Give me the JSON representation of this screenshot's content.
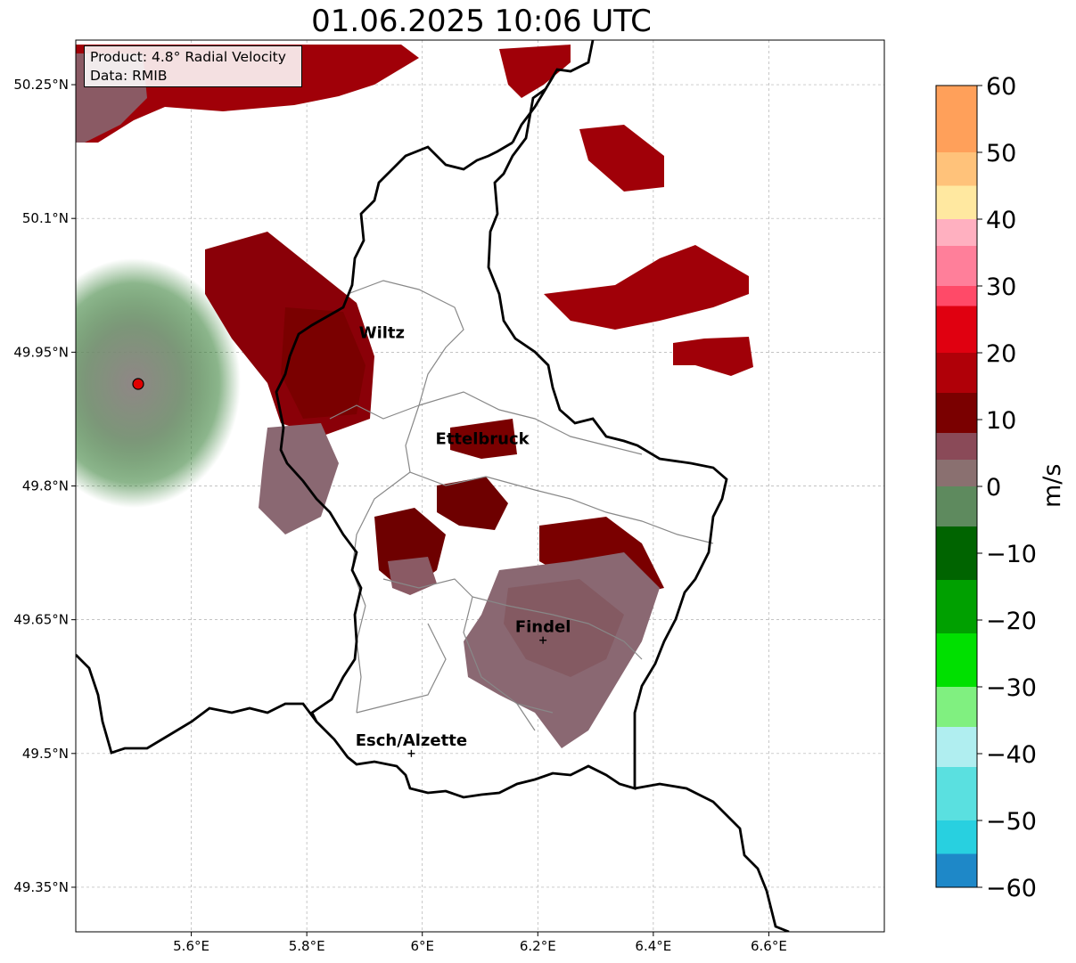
{
  "title": "01.06.2025 10:06 UTC",
  "info_box": {
    "product_line": "Product: 4.8° Radial Velocity",
    "data_line": "Data: RMIB"
  },
  "map": {
    "lon_range": [
      5.4,
      6.8
    ],
    "lat_range": [
      49.3,
      50.3
    ],
    "x_ticks": [
      {
        "value": 5.6,
        "label": "5.6°E"
      },
      {
        "value": 5.8,
        "label": "5.8°E"
      },
      {
        "value": 6.0,
        "label": "6°E"
      },
      {
        "value": 6.2,
        "label": "6.2°E"
      },
      {
        "value": 6.4,
        "label": "6.4°E"
      },
      {
        "value": 6.6,
        "label": "6.6°E"
      }
    ],
    "y_ticks": [
      {
        "value": 50.25,
        "label": "50.25°N"
      },
      {
        "value": 50.1,
        "label": "50.1°N"
      },
      {
        "value": 49.95,
        "label": "49.95°N"
      },
      {
        "value": 49.8,
        "label": "49.8°N"
      },
      {
        "value": 49.65,
        "label": "49.65°N"
      },
      {
        "value": 49.5,
        "label": "49.5°N"
      },
      {
        "value": 49.35,
        "label": "49.35°N"
      }
    ],
    "gridlines": true,
    "radar_site": {
      "lon": 5.505,
      "lat": 49.915
    },
    "cities": [
      {
        "name": "Wiltz",
        "lon": 5.93,
        "lat": 49.966,
        "marker": false
      },
      {
        "name": "Ettelbruck",
        "lon": 6.104,
        "lat": 49.847,
        "marker": false
      },
      {
        "name": "Findel",
        "lon": 6.209,
        "lat": 49.627,
        "marker": true
      },
      {
        "name": "Esch/Alzette",
        "lon": 5.981,
        "lat": 49.5,
        "marker": true
      }
    ]
  },
  "colorbar": {
    "label": "m/s",
    "vmin": -60,
    "vmax": 60,
    "ticks": [
      60,
      50,
      40,
      30,
      20,
      10,
      0,
      -10,
      -20,
      -30,
      -40,
      -50,
      -60
    ],
    "tick_labels": [
      "60",
      "50",
      "40",
      "30",
      "20",
      "10",
      "0",
      "−10",
      "−20",
      "−30",
      "−40",
      "−50",
      "−60"
    ],
    "stops": [
      {
        "from": 50,
        "to": 60,
        "color": "#ffa05a"
      },
      {
        "from": 45,
        "to": 50,
        "color": "#ffc27a"
      },
      {
        "from": 40,
        "to": 45,
        "color": "#ffe8a0"
      },
      {
        "from": 36,
        "to": 40,
        "color": "#ffb0c0"
      },
      {
        "from": 30,
        "to": 36,
        "color": "#ff7f9a"
      },
      {
        "from": 27,
        "to": 30,
        "color": "#ff4a68"
      },
      {
        "from": 20,
        "to": 27,
        "color": "#e00010"
      },
      {
        "from": 14,
        "to": 20,
        "color": "#b00008"
      },
      {
        "from": 8,
        "to": 14,
        "color": "#7a0000"
      },
      {
        "from": 4,
        "to": 8,
        "color": "#8a4a58"
      },
      {
        "from": 0,
        "to": 4,
        "color": "#8a7070"
      },
      {
        "from": -6,
        "to": 0,
        "color": "#5e8a5e"
      },
      {
        "from": -14,
        "to": -6,
        "color": "#006400"
      },
      {
        "from": -22,
        "to": -14,
        "color": "#00a000"
      },
      {
        "from": -30,
        "to": -22,
        "color": "#00e000"
      },
      {
        "from": -36,
        "to": -30,
        "color": "#80f080"
      },
      {
        "from": -42,
        "to": -36,
        "color": "#b0eef0"
      },
      {
        "from": -50,
        "to": -42,
        "color": "#5ae0e0"
      },
      {
        "from": -55,
        "to": -50,
        "color": "#28d0e0"
      },
      {
        "from": -60,
        "to": -55,
        "color": "#1e88c8"
      }
    ]
  },
  "colors": {
    "strong_inbound": "#7a0000",
    "outbound_red": "#b00008",
    "near_zero_mauve": "#8a5a64",
    "near_zero_green": "#5e8a5e",
    "border": "#000000",
    "district_lines": "#888888"
  }
}
